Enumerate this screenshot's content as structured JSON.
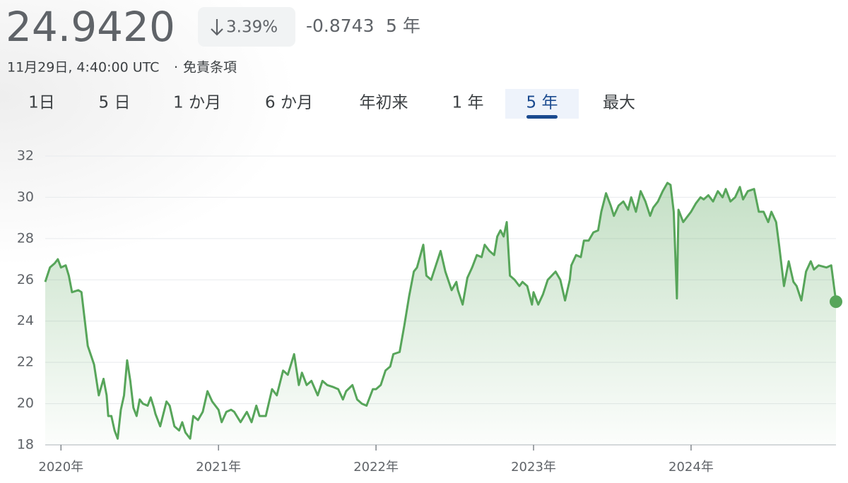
{
  "header": {
    "price": "24.9420",
    "change_percent": "3.39%",
    "change": "-0.8743",
    "period": "5 年",
    "timestamp": "11月29日, 4:40:00 UTC",
    "separator": "·",
    "disclaimer": "免責条項"
  },
  "tabs": {
    "items": [
      "1日",
      "5 日",
      "1 か月",
      "6 か月",
      "年初来",
      "1 年",
      "5 年",
      "最大"
    ],
    "selected": 6
  },
  "chart_data": {
    "type": "line",
    "color": "#57a55a",
    "grid": true,
    "xlim": [
      2019.9,
      2024.92
    ],
    "ylim": [
      18,
      32
    ],
    "yticks": [
      18,
      20,
      22,
      24,
      26,
      28,
      30,
      32
    ],
    "xticks": [
      {
        "value": 2020,
        "label": "2020年"
      },
      {
        "value": 2021,
        "label": "2021年"
      },
      {
        "value": 2022,
        "label": "2022年"
      },
      {
        "value": 2023,
        "label": "2023年"
      },
      {
        "value": 2024,
        "label": "2024年"
      }
    ],
    "x": [
      2019.9,
      2019.93,
      2019.96,
      2019.98,
      2020.0,
      2020.03,
      2020.05,
      2020.07,
      2020.11,
      2020.13,
      2020.17,
      2020.21,
      2020.24,
      2020.27,
      2020.29,
      2020.3,
      2020.32,
      2020.34,
      2020.36,
      2020.38,
      2020.4,
      2020.42,
      2020.44,
      2020.46,
      2020.48,
      2020.5,
      2020.52,
      2020.55,
      2020.57,
      2020.59,
      2020.6,
      2020.63,
      2020.67,
      2020.69,
      2020.72,
      2020.75,
      2020.77,
      2020.79,
      2020.82,
      2020.84,
      2020.87,
      2020.9,
      2020.93,
      2020.96,
      2021.0,
      2021.02,
      2021.05,
      2021.08,
      2021.1,
      2021.14,
      2021.18,
      2021.21,
      2021.24,
      2021.26,
      2021.3,
      2021.34,
      2021.37,
      2021.41,
      2021.44,
      2021.48,
      2021.51,
      2021.53,
      2021.56,
      2021.59,
      2021.63,
      2021.66,
      2021.69,
      2021.73,
      2021.76,
      2021.79,
      2021.81,
      2021.85,
      2021.88,
      2021.91,
      2021.94,
      2021.98,
      2022.0,
      2022.03,
      2022.06,
      2022.09,
      2022.11,
      2022.15,
      2022.18,
      2022.21,
      2022.24,
      2022.26,
      2022.3,
      2022.32,
      2022.35,
      2022.38,
      2022.41,
      2022.44,
      2022.48,
      2022.51,
      2022.52,
      2022.55,
      2022.58,
      2022.61,
      2022.64,
      2022.67,
      2022.69,
      2022.72,
      2022.75,
      2022.77,
      2022.79,
      2022.81,
      2022.83,
      2022.85,
      2022.88,
      2022.91,
      2022.93,
      2022.96,
      2022.99,
      2023.0,
      2023.03,
      2023.06,
      2023.09,
      2023.14,
      2023.17,
      2023.2,
      2023.23,
      2023.24,
      2023.27,
      2023.3,
      2023.32,
      2023.35,
      2023.38,
      2023.41,
      2023.43,
      2023.46,
      2023.49,
      2023.51,
      2023.54,
      2023.57,
      2023.6,
      2023.62,
      2023.65,
      2023.68,
      2023.71,
      2023.74,
      2023.76,
      2023.79,
      2023.82,
      2023.85,
      2023.87,
      2023.89,
      2023.91,
      2023.92,
      2023.95,
      2023.98,
      2024.0,
      2024.03,
      2024.06,
      2024.08,
      2024.11,
      2024.14,
      2024.17,
      2024.2,
      2024.22,
      2024.25,
      2024.28,
      2024.31,
      2024.33,
      2024.36,
      2024.4,
      2024.43,
      2024.46,
      2024.49,
      2024.51,
      2024.54,
      2024.56,
      2024.59,
      2024.62,
      2024.65,
      2024.67,
      2024.7,
      2024.73,
      2024.76,
      2024.78,
      2024.81,
      2024.86,
      2024.89,
      2024.92
    ],
    "values": [
      25.9,
      26.6,
      26.8,
      27.0,
      26.6,
      26.7,
      26.2,
      25.4,
      25.5,
      25.4,
      22.8,
      21.9,
      20.4,
      21.2,
      20.4,
      19.4,
      19.4,
      18.7,
      18.3,
      19.7,
      20.4,
      22.1,
      21.1,
      19.8,
      19.4,
      20.2,
      20.0,
      19.9,
      20.3,
      19.8,
      19.5,
      18.9,
      20.1,
      19.9,
      18.9,
      18.7,
      19.1,
      18.6,
      18.3,
      19.4,
      19.2,
      19.6,
      20.6,
      20.1,
      19.7,
      19.1,
      19.6,
      19.7,
      19.6,
      19.1,
      19.6,
      19.1,
      19.9,
      19.4,
      19.4,
      20.7,
      20.4,
      21.6,
      21.4,
      22.4,
      20.9,
      21.5,
      20.9,
      21.1,
      20.4,
      21.1,
      20.9,
      20.8,
      20.7,
      20.2,
      20.6,
      20.9,
      20.2,
      20.0,
      19.9,
      20.7,
      20.7,
      20.9,
      21.6,
      21.8,
      22.4,
      22.5,
      23.8,
      25.2,
      26.4,
      26.6,
      27.7,
      26.2,
      26.0,
      26.7,
      27.4,
      26.4,
      25.5,
      25.9,
      25.5,
      24.8,
      26.1,
      26.6,
      27.2,
      27.1,
      27.7,
      27.4,
      27.2,
      28.1,
      28.4,
      28.1,
      28.8,
      26.2,
      26.0,
      25.7,
      25.9,
      25.7,
      24.8,
      25.4,
      24.8,
      25.3,
      26.0,
      26.4,
      26.0,
      25.0,
      26.0,
      26.7,
      27.2,
      27.1,
      27.9,
      27.9,
      28.3,
      28.4,
      29.3,
      30.2,
      29.6,
      29.1,
      29.6,
      29.8,
      29.4,
      30.0,
      29.3,
      30.3,
      29.8,
      29.1,
      29.5,
      29.8,
      30.3,
      30.7,
      30.6,
      29.3,
      25.1,
      29.4,
      28.8,
      29.1,
      29.3,
      29.7,
      30.0,
      29.9,
      30.1,
      29.8,
      30.3,
      30.0,
      30.4,
      29.8,
      30.0,
      30.5,
      29.9,
      30.3,
      30.4,
      29.3,
      29.3,
      28.8,
      29.3,
      28.8,
      27.6,
      25.7,
      26.9,
      25.9,
      25.7,
      25.0,
      26.4,
      26.9,
      26.5,
      26.7,
      26.6,
      26.7,
      24.942
    ]
  }
}
